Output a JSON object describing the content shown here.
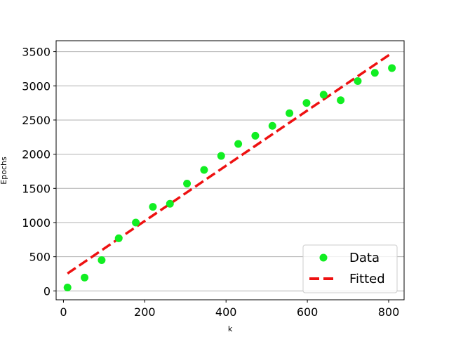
{
  "chart_data": {
    "type": "scatter",
    "title": "",
    "xlabel": "k",
    "ylabel": "Epochs",
    "xlim": [
      -18,
      838
    ],
    "ylim": [
      -130,
      3660
    ],
    "xticks": [
      0,
      200,
      400,
      600,
      800
    ],
    "yticks": [
      0,
      500,
      1000,
      1500,
      2000,
      2500,
      3000,
      3500
    ],
    "xtick_labels": [
      "0",
      "200",
      "400",
      "600",
      "800"
    ],
    "ytick_labels": [
      "0",
      "500",
      "1000",
      "1500",
      "2000",
      "2500",
      "3000",
      "3500"
    ],
    "grid": "horizontal",
    "legend_position": "lower-right",
    "series": [
      {
        "name": "Data",
        "kind": "scatter",
        "color": "#11ee22",
        "x": [
          10,
          52,
          94,
          136,
          178,
          220,
          262,
          304,
          346,
          388,
          430,
          472,
          514,
          556,
          598,
          640,
          682,
          724,
          766,
          808
        ],
        "y": [
          50,
          195,
          450,
          770,
          1000,
          1230,
          1275,
          1570,
          1770,
          1975,
          2150,
          2270,
          2415,
          2600,
          2750,
          2870,
          2790,
          3070,
          3190,
          3260
        ]
      },
      {
        "name": "Fitted",
        "kind": "line",
        "style": "dashed",
        "color": "#ee1111",
        "x": [
          10,
          808
        ],
        "y": [
          255,
          3480
        ]
      }
    ]
  }
}
